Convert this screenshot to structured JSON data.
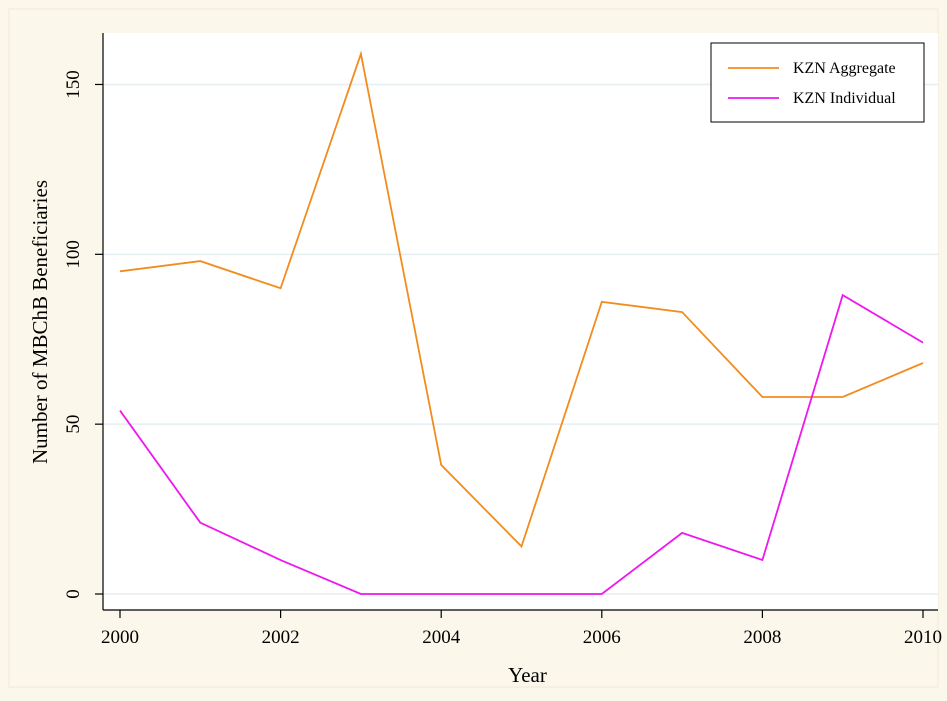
{
  "colors": {
    "outer_background": "#fbf7ea",
    "plot_background": "#ffffff",
    "grid": "#e6eef2",
    "axis": "#000000",
    "kzn_aggregate": "#f28c1e",
    "kzn_individual": "#ee17ee"
  },
  "chart_data": {
    "type": "line",
    "title": "",
    "xlabel": "Year",
    "ylabel": "Number of MBChB Beneficiaries",
    "x": [
      2000,
      2001,
      2002,
      2003,
      2004,
      2005,
      2006,
      2007,
      2008,
      2009,
      2010
    ],
    "xlim": [
      2000,
      2010
    ],
    "ylim": [
      0,
      160
    ],
    "xticks": [
      2000,
      2002,
      2004,
      2006,
      2008,
      2010
    ],
    "yticks": [
      0,
      50,
      100,
      150
    ],
    "grid": "horizontal",
    "legend_position": "top-right",
    "series": [
      {
        "name": "KZN Aggregate",
        "color": "#f28c1e",
        "values": [
          95,
          98,
          90,
          159,
          38,
          14,
          86,
          83,
          58,
          58,
          68
        ]
      },
      {
        "name": "KZN Individual",
        "color": "#ee17ee",
        "values": [
          54,
          21,
          10,
          0,
          0,
          0,
          0,
          18,
          10,
          88,
          74
        ]
      }
    ]
  }
}
